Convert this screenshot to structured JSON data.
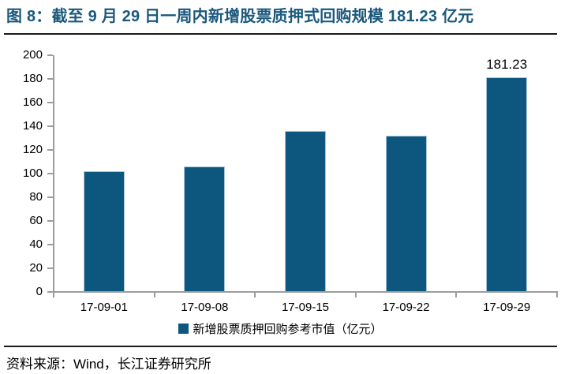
{
  "figure": {
    "caption": "图 8：截至 9 月 29 日一周内新增股票质押式回购规模 181.23 亿元"
  },
  "chart_data": {
    "type": "bar",
    "title": "截至 9 月 29 日一周内新增股票质押式回购规模 181.23 亿元",
    "categories": [
      "17-09-01",
      "17-09-08",
      "17-09-15",
      "17-09-22",
      "17-09-29"
    ],
    "values": [
      102,
      106,
      136,
      132,
      181.23
    ],
    "value_labels": [
      "",
      "",
      "",
      "",
      "181.23"
    ],
    "legend": [
      "新增股票质押回购参考市值（亿元）"
    ],
    "legend_position": "bottom",
    "xlabel": "",
    "ylabel": "",
    "ylim": [
      0,
      200
    ],
    "ytick_step": 20,
    "yticks": [
      0,
      20,
      40,
      60,
      80,
      100,
      120,
      140,
      160,
      180,
      200
    ],
    "grid": false
  },
  "style": {
    "bar_color": "#0d567e",
    "bar_border": "#a7c6da",
    "axis_color": "#9c9c9c",
    "title_color": "#1a587c",
    "text_color": "#000000",
    "rule_color": "#1a1a1a"
  },
  "footer": {
    "source": "资料来源：Wind，长江证券研究所"
  }
}
